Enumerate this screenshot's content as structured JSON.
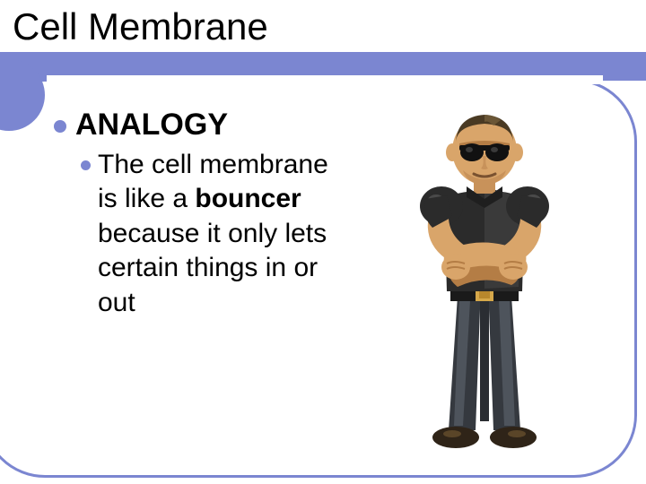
{
  "colors": {
    "accent": "#7b86d1",
    "text": "#000000",
    "background": "#ffffff"
  },
  "title": "Cell Membrane",
  "bullet1": "ANALOGY",
  "body_prefix": "The",
  "body_rest_html": "cell membrane is like a <b>bouncer</b> because it only lets certain things in or out",
  "bouncer": {
    "skin": "#d9a56a",
    "skin_shadow": "#b47d45",
    "shirt": "#2b2b2b",
    "shirt_hi": "#4a4a4a",
    "pants": "#35393f",
    "pants_hi": "#4e545c",
    "belt": "#1a1a1a",
    "buckle": "#d6a84a",
    "shoe": "#2f2418",
    "glasses": "#111111",
    "hair": "#4a3a23"
  }
}
